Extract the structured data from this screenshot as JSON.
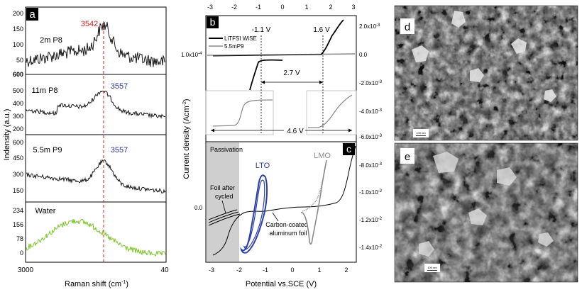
{
  "colors": {
    "axis": "#000000",
    "trace": "#1a1a1a",
    "water": "#7cc62b",
    "peak_line": "#d12020",
    "peak_label_red": "#d12020",
    "peak_label_blue": "#2b3a8f",
    "lto": "#2a3fa8",
    "lmo": "#8a8a8a",
    "passivation": "#cfcfcf"
  },
  "panel_a": {
    "letter": "a",
    "xlabel": "Raman shift (cm",
    "xlabel_sup": "-1",
    "xlabel_end": ")",
    "ylabel": "Indensity (a.u.)",
    "x_ticks": [
      "3000",
      "40"
    ],
    "peak_wavenumber": 3542,
    "subplots": [
      {
        "name": "2m P8",
        "peak_label": "3542",
        "peak_color": "red",
        "y_ticks": [
          "200",
          "150",
          "100",
          "50",
          "600"
        ],
        "bold_last_tick": true
      },
      {
        "name": "11m P8",
        "peak_label": "3557",
        "peak_color": "blue",
        "y_ticks": [
          "500",
          "400",
          "300",
          "200"
        ]
      },
      {
        "name": "5.5m P9",
        "peak_label": "3557",
        "peak_color": "blue",
        "y_ticks": [
          "600",
          "450",
          "300",
          "150"
        ]
      },
      {
        "name": "Water",
        "peak_label": "",
        "peak_color": "",
        "y_ticks": [
          "234",
          "156",
          "78",
          "0"
        ]
      }
    ]
  },
  "panel_b": {
    "letter": "b",
    "top_ticks": [
      "-3",
      "-2",
      "-1",
      "0",
      "1",
      "2",
      "3"
    ],
    "right_ticks": [
      "2.0x10",
      "0.0",
      "-2.0x10",
      "-4.0x10",
      "-6.0x10"
    ],
    "right_tick_exps": [
      "-3",
      "",
      "-3",
      "-3",
      "-3"
    ],
    "left_tick": "1.0x10",
    "left_tick_exp": "-4",
    "legend": [
      "LiTFSI WiSE",
      "5.5mP9"
    ],
    "annotations": {
      "v_neg": "-1.1 V",
      "v_pos": "1.6 V",
      "window_b": "2.7 V",
      "window_c": "4.6 V"
    }
  },
  "panel_c": {
    "letter": "c",
    "xlabel": "Potential vs.SCE (V)",
    "ylabel": "Current density (Acm",
    "ylabel_sup": "-2",
    "ylabel_end": ")",
    "x_ticks": [
      "-3",
      "-2",
      "-1",
      "0",
      "1",
      "2"
    ],
    "left_tick": "0.0",
    "right_ticks": [
      "-8.0x10",
      "-1.0x10",
      "-1.2x10",
      "-1.4x10"
    ],
    "right_tick_exps": [
      "-3",
      "-2",
      "-2",
      "-2"
    ],
    "labels": {
      "passivation": "Passivation",
      "lto": "LTO",
      "lmo": "LMO",
      "foil_line1": "Foil after",
      "foil_line2": "cycled",
      "carbon_line1": "Carbon-coated",
      "carbon_line2": "aluminum foil"
    }
  },
  "panel_d": {
    "letter": "d",
    "scale_bar": "100 nm"
  },
  "panel_e": {
    "letter": "e",
    "scale_bar": "100 nm"
  }
}
